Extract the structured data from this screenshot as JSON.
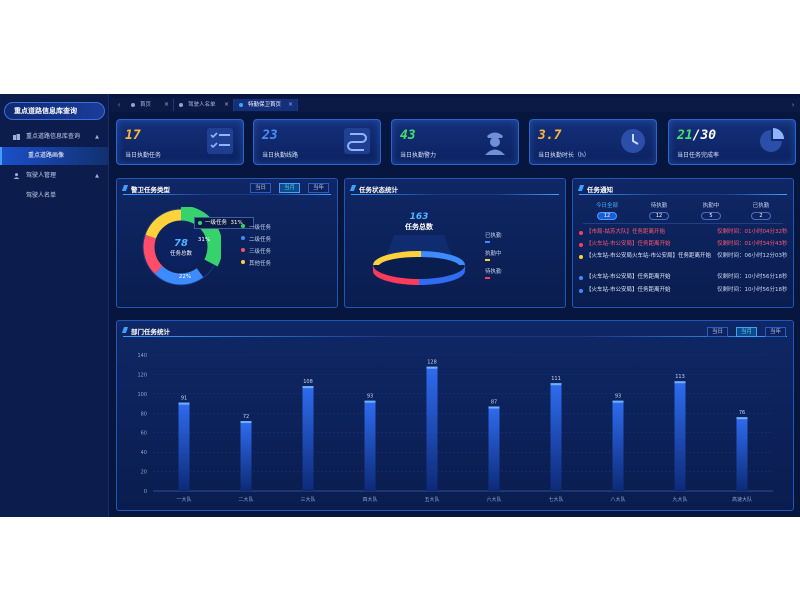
{
  "sidebar": {
    "title": "重点道路信息库查询",
    "items": [
      {
        "label": "重点道路信息库查询",
        "icon": "building-icon",
        "expanded": true
      },
      {
        "label": "重点道路画像",
        "active": true
      },
      {
        "label": "驾驶人管理",
        "icon": "user-group-icon",
        "expanded": true
      },
      {
        "label": "驾驶人名单"
      }
    ]
  },
  "tabs": [
    {
      "label": "首页",
      "active": false
    },
    {
      "label": "驾驶人名单",
      "active": false
    },
    {
      "label": "特勤保卫首页",
      "active": true
    }
  ],
  "kpis": [
    {
      "value": "17",
      "label": "当日执勤任务",
      "color": "#ffb43c",
      "icon": "checklist-icon"
    },
    {
      "value": "23",
      "label": "当日执勤线路",
      "color": "#4a8cff",
      "icon": "route-icon"
    },
    {
      "value": "43",
      "label": "当日执勤警力",
      "color": "#45e06a",
      "icon": "police-officer-icon"
    },
    {
      "value": "3.7",
      "label": "当日执勤时长（h）",
      "color": "#ffb43c",
      "icon": "clock-icon"
    },
    {
      "value_a": "21",
      "value_b": "30",
      "label": "当日任务完成率",
      "color_a": "#45e06a",
      "color_b": "#ffffff",
      "icon": "pie-chart-icon"
    }
  ],
  "guard_type": {
    "title": "警卫任务类型",
    "segments": [
      "当日",
      "当月",
      "当年"
    ],
    "active_segment": 1,
    "total": "78",
    "total_label": "任务总数",
    "tooltip": {
      "name": "一级任务",
      "value": "31%"
    },
    "legend": [
      {
        "name": "一级任务",
        "color": "#36d36c"
      },
      {
        "name": "二级任务",
        "color": "#3d8bff"
      },
      {
        "name": "三级任务",
        "color": "#ff4d6a"
      },
      {
        "name": "其他任务",
        "color": "#ffd23c"
      }
    ],
    "labels": [
      "31%",
      "22%"
    ]
  },
  "task_status": {
    "title": "任务状态统计",
    "total": "163",
    "total_label": "任务总数",
    "legend": [
      {
        "name": "已执勤",
        "color": "#3d8bff"
      },
      {
        "name": "执勤中",
        "color": "#ffd23c"
      },
      {
        "name": "待执勤",
        "color": "#ff3b5c"
      }
    ]
  },
  "notice": {
    "title": "任务通知",
    "stats": [
      {
        "label": "今日全部",
        "count": "12",
        "active": true
      },
      {
        "label": "待执勤",
        "count": "12"
      },
      {
        "label": "执勤中",
        "count": "5"
      },
      {
        "label": "已执勤",
        "count": "2"
      }
    ],
    "rows": [
      {
        "text": "【市局-姑苏大队】任务距离开始",
        "time": "仅剩时间：01小时04分32秒",
        "dot": "#ff3b5c",
        "color": "#ff5a6e"
      },
      {
        "text": "【火车站-市公安局】任务距离开始",
        "time": "仅剩时间：01小时34分43秒",
        "dot": "#ff3b5c",
        "color": "#ff5a6e"
      },
      {
        "text": "【火车站-市公安局火车站-市公安局】任务距离开始",
        "time": "仅剩时间：06小时12分03秒",
        "dot": "#ffd23c",
        "color": "#e6ecfb"
      },
      {
        "text": "【火车站-市公安局】任务距离开始",
        "time": "仅剩时间：10小时56分18秒",
        "dot": "#3d8bff",
        "color": "#e6ecfb"
      },
      {
        "text": "【火车站-市公安局】任务距离开始",
        "time": "仅剩时间：10小时56分18秒",
        "dot": "#3d8bff",
        "color": "#e6ecfb"
      }
    ]
  },
  "dept": {
    "title": "部门任务统计",
    "segments": [
      "当日",
      "当月",
      "当年"
    ],
    "active_segment": 1
  },
  "chart_data": {
    "type": "bar",
    "title": "部门任务统计",
    "categories": [
      "一大队",
      "二大队",
      "三大队",
      "四大队",
      "五大队",
      "六大队",
      "七大队",
      "八大队",
      "九大队",
      "高速大队"
    ],
    "values": [
      91,
      72,
      108,
      93,
      128,
      87,
      111,
      93,
      113,
      76
    ],
    "ylim": [
      0,
      140
    ],
    "yticks": [
      0,
      20,
      40,
      60,
      80,
      100,
      120,
      140
    ],
    "grid": true,
    "bar_color": "#2f6cf0"
  }
}
